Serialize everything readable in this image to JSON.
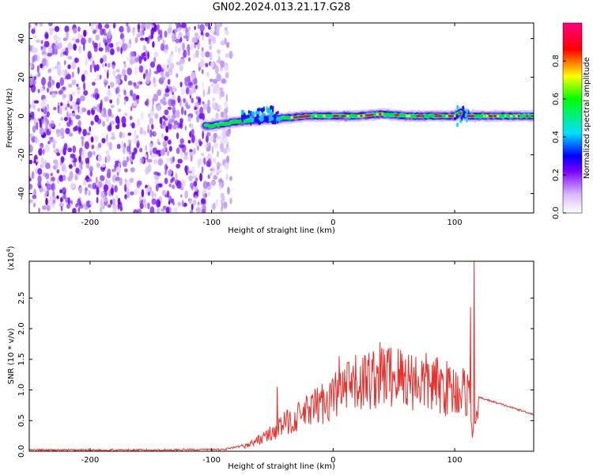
{
  "figure": {
    "title": "GN02.2024.013.21.17.G28"
  },
  "chart_data": [
    {
      "type": "heatmap",
      "title": "",
      "xlabel": "Height of straight line (km)",
      "ylabel": "Frequency (Hz)",
      "xlim": [
        -250,
        165
      ],
      "ylim": [
        -50,
        48
      ],
      "x_ticks": [
        -200,
        -100,
        0,
        100
      ],
      "y_ticks": [
        40,
        20,
        0,
        -20,
        -40
      ],
      "noise_region_x": [
        -250,
        -88
      ],
      "signal_track": [
        {
          "x": -100,
          "y": -5
        },
        {
          "x": -80,
          "y": -3
        },
        {
          "x": -60,
          "y": -2
        },
        {
          "x": -40,
          "y": -1
        },
        {
          "x": -20,
          "y": 0
        },
        {
          "x": 0,
          "y": 0
        },
        {
          "x": 20,
          "y": 0
        },
        {
          "x": 40,
          "y": 1
        },
        {
          "x": 60,
          "y": 0
        },
        {
          "x": 80,
          "y": 0
        },
        {
          "x": 100,
          "y": 0
        },
        {
          "x": 105,
          "y": 2
        },
        {
          "x": 110,
          "y": 0
        },
        {
          "x": 165,
          "y": 0
        }
      ],
      "colorbar": {
        "label": "Normalized spectral amplitude",
        "ticks": [
          "0.0",
          "0.2",
          "0.4",
          "0.6",
          "0.8"
        ],
        "range": [
          0,
          1
        ],
        "colors": [
          "#ffffff",
          "#d8b8f8",
          "#7a00ff",
          "#0000ff",
          "#00e0ff",
          "#00ff00",
          "#ffff00",
          "#ff0000",
          "#ff0080"
        ]
      }
    },
    {
      "type": "line",
      "title": "",
      "xlabel": "Height of straight line (km)",
      "ylabel": "SNR (10 * v/v)",
      "scale_label": "(x10",
      "scale_exp": "4",
      "xlim": [
        -250,
        165
      ],
      "ylim": [
        0,
        3.1
      ],
      "x_ticks": [
        -200,
        -100,
        0,
        100
      ],
      "y_ticks": [
        "0.0",
        "0.5",
        "1.0",
        "1.5",
        "2.0",
        "2.5"
      ],
      "color": "#e8302c",
      "envelope": [
        {
          "x": -250,
          "y": 0.02
        },
        {
          "x": -150,
          "y": 0.02
        },
        {
          "x": -90,
          "y": 0.03
        },
        {
          "x": -70,
          "y": 0.1
        },
        {
          "x": -50,
          "y": 0.3
        },
        {
          "x": -40,
          "y": 0.45
        },
        {
          "x": -20,
          "y": 0.65
        },
        {
          "x": 0,
          "y": 0.9
        },
        {
          "x": 20,
          "y": 1.1
        },
        {
          "x": 40,
          "y": 1.25
        },
        {
          "x": 60,
          "y": 1.2
        },
        {
          "x": 80,
          "y": 1.1
        },
        {
          "x": 100,
          "y": 1.0
        },
        {
          "x": 115,
          "y": 0.95
        },
        {
          "x": 120,
          "y": 0.88
        },
        {
          "x": 165,
          "y": 0.6
        }
      ],
      "spikes": [
        {
          "x": -46,
          "y": 1.05
        },
        {
          "x": 5,
          "y": 1.55
        },
        {
          "x": 45,
          "y": 1.45
        },
        {
          "x": 113,
          "y": 2.35
        },
        {
          "x": 116,
          "y": 3.1
        }
      ]
    }
  ]
}
